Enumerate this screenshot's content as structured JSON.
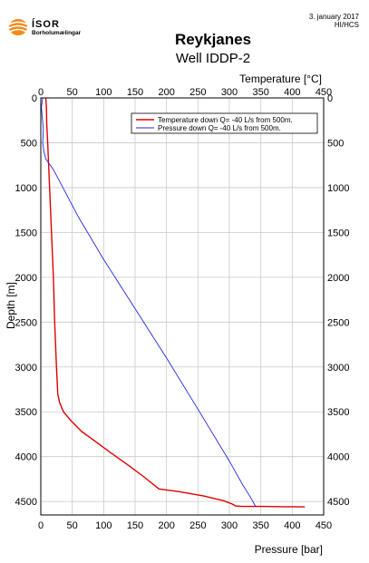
{
  "logo": {
    "name": "ÍSOR",
    "tagline": "Borholumælingar"
  },
  "header": {
    "date": "3. january 2017",
    "author": "HI/HCS"
  },
  "chart_data": {
    "type": "line",
    "title": "Reykjanes",
    "subtitle": "Well IDDP-2",
    "top_axis_label": "Temperature [°C]",
    "bottom_axis_label": "Pressure [bar]",
    "ylabel": "Depth [m]",
    "temperature_range": [
      0,
      450
    ],
    "pressure_range": [
      0,
      450
    ],
    "depth_range": [
      0,
      4650
    ],
    "depth_inverted": true,
    "x_ticks": [
      0,
      50,
      100,
      150,
      200,
      250,
      300,
      350,
      400,
      450
    ],
    "y_ticks": [
      0,
      500,
      1000,
      1500,
      2000,
      2500,
      3000,
      3500,
      4000,
      4500
    ],
    "grid": true,
    "legend_position": "top-right",
    "colors": {
      "temperature": "#e00000",
      "pressure": "#2424e0"
    },
    "series": [
      {
        "name": "Temperature down Q= -40 L/s from 500m.",
        "axis": "temperature",
        "x": [
          8,
          9,
          9.5,
          11,
          14,
          17,
          20,
          22,
          25,
          27,
          30,
          32,
          33,
          36,
          48,
          65,
          85,
          110,
          140,
          165,
          188,
          220,
          260,
          290,
          305,
          310,
          320,
          350,
          390,
          420
        ],
        "depth": [
          0,
          100,
          300,
          500,
          1000,
          1500,
          2000,
          2500,
          3000,
          3300,
          3400,
          3430,
          3450,
          3500,
          3600,
          3720,
          3820,
          3950,
          4100,
          4230,
          4360,
          4390,
          4440,
          4490,
          4530,
          4550,
          4555,
          4555,
          4558,
          4560
        ]
      },
      {
        "name": "Pressure down Q= -40 L/s from 500m.",
        "axis": "pressure",
        "x": [
          3,
          1,
          2,
          4,
          3,
          5,
          8,
          12,
          20,
          60,
          100,
          150,
          200,
          250,
          300,
          320,
          335,
          342
        ],
        "depth": [
          0,
          100,
          200,
          350,
          500,
          600,
          680,
          720,
          800,
          1330,
          1800,
          2350,
          2900,
          3470,
          4050,
          4300,
          4470,
          4560
        ]
      }
    ]
  }
}
